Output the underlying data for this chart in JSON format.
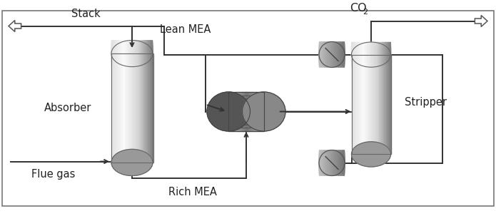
{
  "bg_color": "#ffffff",
  "border_color": "#888888",
  "line_color": "#333333",
  "text_color": "#222222",
  "labels": {
    "stack": "Stack",
    "lean_mea": "Lean MEA",
    "absorber": "Absorber",
    "flue_gas": "Flue gas",
    "rich_mea": "Rich MEA",
    "co2_main": "CO",
    "co2_sub": "2",
    "stripper": "Stripper"
  },
  "figsize": [
    6.95,
    3.03
  ],
  "dpi": 100
}
